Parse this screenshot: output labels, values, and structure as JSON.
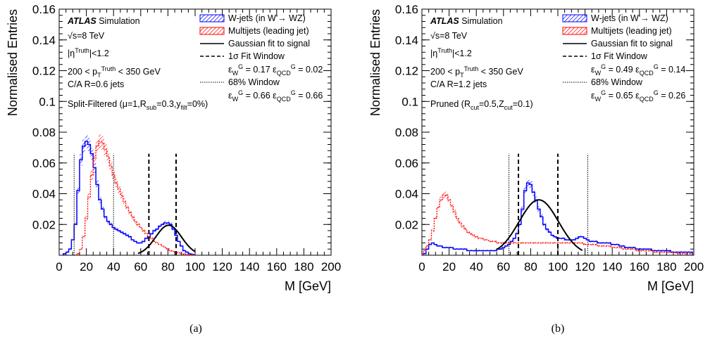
{
  "chart_data": [
    {
      "type": "histogram",
      "caption": "(a)",
      "xlabel": "M [GeV]",
      "ylabel": "Normalised Entries",
      "xlim": [
        0,
        200
      ],
      "ylim": [
        0,
        0.16
      ],
      "xticks": [
        0,
        20,
        40,
        60,
        80,
        100,
        120,
        140,
        160,
        180,
        200
      ],
      "yticks": [
        0.02,
        0.04,
        0.06,
        0.08,
        0.1,
        0.12,
        0.14,
        0.16
      ],
      "annotations": {
        "atlas": "ATLAS",
        "atlas_suffix": "Simulation",
        "energy": "√s=8 TeV",
        "eta": "|η^Truth|<1.2",
        "pt": "200 < p_T^Truth < 350 GeV",
        "jets": "C/A R=0.6 jets",
        "algo": "Split-Filtered (μ=1,R_sub=0.3,y_filt=0%)"
      },
      "legend": {
        "placement": "top-right",
        "entries": [
          "W-jets (in W'→ WZ)",
          "Multijets (leading jet)",
          "Gaussian fit to signal",
          "1σ Fit Window",
          "68% Window"
        ],
        "fit_eff": "ε_W^G = 0.17 ε_QCD^G = 0.02",
        "win_eff": "ε_W^G = 0.66 ε_QCD^G = 0.66"
      },
      "series": [
        {
          "name": "W-jets (in W'→ WZ)",
          "color": "#0000ff",
          "bin_width": 2,
          "x": [
            4,
            6,
            8,
            10,
            12,
            14,
            16,
            18,
            20,
            22,
            24,
            26,
            28,
            30,
            32,
            34,
            36,
            38,
            40,
            42,
            44,
            46,
            48,
            50,
            52,
            54,
            56,
            58,
            60,
            62,
            64,
            66,
            68,
            70,
            72,
            74,
            76,
            78,
            80,
            82,
            84,
            86,
            88,
            90,
            92,
            94,
            96,
            98
          ],
          "y": [
            0.001,
            0.002,
            0.004,
            0.01,
            0.02,
            0.042,
            0.062,
            0.071,
            0.074,
            0.072,
            0.066,
            0.057,
            0.046,
            0.036,
            0.03,
            0.025,
            0.022,
            0.02,
            0.018,
            0.017,
            0.016,
            0.015,
            0.014,
            0.013,
            0.012,
            0.01,
            0.009,
            0.008,
            0.008,
            0.009,
            0.011,
            0.012,
            0.014,
            0.016,
            0.017,
            0.019,
            0.02,
            0.021,
            0.021,
            0.02,
            0.017,
            0.013,
            0.009,
            0.006,
            0.003,
            0.002,
            0.001,
            0.0005
          ]
        },
        {
          "name": "Multijets (leading jet)",
          "color": "#ff0000",
          "bin_width": 2,
          "x": [
            14,
            16,
            18,
            20,
            22,
            24,
            26,
            28,
            30,
            32,
            34,
            36,
            38,
            40,
            42,
            44,
            46,
            48,
            50,
            52,
            54,
            56,
            58,
            60,
            62,
            64,
            66,
            68,
            70,
            72,
            74,
            76,
            78,
            80,
            82,
            84,
            86,
            88,
            90,
            92,
            94,
            96,
            98
          ],
          "y": [
            0.001,
            0.004,
            0.012,
            0.024,
            0.038,
            0.052,
            0.063,
            0.071,
            0.074,
            0.073,
            0.069,
            0.064,
            0.058,
            0.052,
            0.047,
            0.043,
            0.039,
            0.035,
            0.031,
            0.028,
            0.025,
            0.022,
            0.02,
            0.018,
            0.016,
            0.014,
            0.012,
            0.011,
            0.009,
            0.008,
            0.007,
            0.006,
            0.005,
            0.004,
            0.003,
            0.0025,
            0.002,
            0.0015,
            0.001,
            0.0008,
            0.0006,
            0.0004,
            0.0003
          ]
        }
      ],
      "gaussian_fit": {
        "mean": 80.5,
        "sigma": 9.5,
        "amplitude": 0.0195,
        "range": [
          58,
          100
        ]
      },
      "fit_window": [
        66,
        86
      ],
      "window_68": [
        11,
        40
      ]
    },
    {
      "type": "histogram",
      "caption": "(b)",
      "xlabel": "M [GeV]",
      "ylabel": "Normalised Entries",
      "xlim": [
        0,
        200
      ],
      "ylim": [
        0,
        0.16
      ],
      "xticks": [
        0,
        20,
        40,
        60,
        80,
        100,
        120,
        140,
        160,
        180,
        200
      ],
      "yticks": [
        0.02,
        0.04,
        0.06,
        0.08,
        0.1,
        0.12,
        0.14,
        0.16
      ],
      "annotations": {
        "atlas": "ATLAS",
        "atlas_suffix": "Simulation",
        "energy": "√s=8 TeV",
        "eta": "|η^Truth|<1.2",
        "pt": "200 < p_T^Truth < 350 GeV",
        "jets": "C/A R=1.2 jets",
        "algo": "Pruned (R_cut=0.5,Z_cut=0.1)"
      },
      "legend": {
        "placement": "top-right",
        "entries": [
          "W-jets (in W'→ WZ)",
          "Multijets (leading jet)",
          "Gaussian fit to signal",
          "1σ Fit Window",
          "68% Window"
        ],
        "fit_eff": "ε_W^G = 0.49 ε_QCD^G = 0.14",
        "win_eff": "ε_W^G = 0.65 ε_QCD^G = 0.26"
      },
      "series": [
        {
          "name": "W-jets (in W'→ WZ)",
          "color": "#0000ff",
          "bin_width": 2,
          "x": [
            2,
            4,
            6,
            8,
            10,
            12,
            14,
            16,
            18,
            20,
            22,
            24,
            26,
            28,
            30,
            32,
            34,
            36,
            38,
            40,
            42,
            44,
            46,
            48,
            50,
            52,
            54,
            56,
            58,
            60,
            62,
            64,
            66,
            68,
            70,
            72,
            74,
            76,
            78,
            80,
            82,
            84,
            86,
            88,
            90,
            92,
            94,
            96,
            98,
            100,
            102,
            104,
            106,
            108,
            110,
            112,
            114,
            116,
            118,
            120,
            122,
            124,
            126,
            128,
            130,
            132,
            134,
            136,
            138,
            140,
            142,
            144,
            146,
            148,
            150,
            152,
            154,
            156,
            158,
            160,
            162,
            164,
            166,
            168,
            170,
            172,
            174,
            176,
            178,
            180,
            182,
            184,
            186,
            188,
            190,
            192,
            194,
            196,
            198
          ],
          "y": [
            0.001,
            0.004,
            0.007,
            0.008,
            0.007,
            0.006,
            0.006,
            0.005,
            0.005,
            0.005,
            0.005,
            0.004,
            0.004,
            0.004,
            0.004,
            0.004,
            0.003,
            0.003,
            0.003,
            0.003,
            0.003,
            0.003,
            0.003,
            0.003,
            0.003,
            0.003,
            0.003,
            0.004,
            0.004,
            0.005,
            0.006,
            0.007,
            0.009,
            0.011,
            0.014,
            0.02,
            0.03,
            0.042,
            0.047,
            0.046,
            0.041,
            0.036,
            0.03,
            0.025,
            0.02,
            0.017,
            0.015,
            0.013,
            0.012,
            0.011,
            0.011,
            0.011,
            0.01,
            0.01,
            0.01,
            0.01,
            0.011,
            0.012,
            0.012,
            0.011,
            0.01,
            0.009,
            0.009,
            0.009,
            0.008,
            0.008,
            0.008,
            0.008,
            0.008,
            0.007,
            0.007,
            0.007,
            0.006,
            0.006,
            0.005,
            0.005,
            0.005,
            0.005,
            0.004,
            0.004,
            0.004,
            0.004,
            0.004,
            0.004,
            0.003,
            0.003,
            0.003,
            0.003,
            0.003,
            0.003,
            0.003,
            0.002,
            0.002,
            0.002,
            0.002,
            0.002,
            0.002,
            0.002,
            0.002
          ]
        },
        {
          "name": "Multijets (leading jet)",
          "color": "#ff0000",
          "bin_width": 2,
          "x": [
            2,
            4,
            6,
            8,
            10,
            12,
            14,
            16,
            18,
            20,
            22,
            24,
            26,
            28,
            30,
            32,
            34,
            36,
            38,
            40,
            42,
            44,
            46,
            48,
            50,
            52,
            54,
            56,
            58,
            60,
            62,
            64,
            66,
            68,
            70,
            72,
            74,
            76,
            78,
            80,
            82,
            84,
            86,
            88,
            90,
            92,
            94,
            96,
            98,
            100,
            102,
            104,
            106,
            108,
            110,
            112,
            114,
            116,
            118,
            120,
            122,
            124,
            126,
            128,
            130,
            132,
            134,
            136,
            138,
            140,
            142,
            144,
            146,
            148,
            150,
            152,
            154,
            156,
            158,
            160,
            162,
            164,
            166,
            168,
            170,
            172,
            174,
            176,
            178,
            180,
            182,
            184,
            186,
            188,
            190,
            192,
            194,
            196,
            198
          ],
          "y": [
            0.003,
            0.006,
            0.01,
            0.016,
            0.024,
            0.031,
            0.036,
            0.039,
            0.039,
            0.036,
            0.032,
            0.028,
            0.024,
            0.021,
            0.019,
            0.017,
            0.015,
            0.014,
            0.013,
            0.012,
            0.011,
            0.011,
            0.01,
            0.01,
            0.009,
            0.009,
            0.009,
            0.008,
            0.008,
            0.008,
            0.008,
            0.008,
            0.008,
            0.008,
            0.008,
            0.008,
            0.008,
            0.008,
            0.008,
            0.008,
            0.008,
            0.008,
            0.008,
            0.008,
            0.008,
            0.008,
            0.008,
            0.008,
            0.008,
            0.008,
            0.008,
            0.008,
            0.008,
            0.008,
            0.008,
            0.008,
            0.008,
            0.008,
            0.008,
            0.007,
            0.007,
            0.007,
            0.007,
            0.007,
            0.006,
            0.006,
            0.006,
            0.006,
            0.006,
            0.005,
            0.005,
            0.005,
            0.005,
            0.004,
            0.004,
            0.004,
            0.004,
            0.004,
            0.003,
            0.003,
            0.003,
            0.003,
            0.003,
            0.003,
            0.003,
            0.002,
            0.002,
            0.002,
            0.002,
            0.002,
            0.002,
            0.002,
            0.002,
            0.001,
            0.001,
            0.001,
            0.001,
            0.001,
            0.001
          ]
        }
      ],
      "gaussian_fit": {
        "mean": 86,
        "sigma": 14.5,
        "amplitude": 0.036,
        "range": [
          55,
          118
        ]
      },
      "fit_window": [
        71,
        100
      ],
      "window_68": [
        64,
        122
      ]
    }
  ]
}
